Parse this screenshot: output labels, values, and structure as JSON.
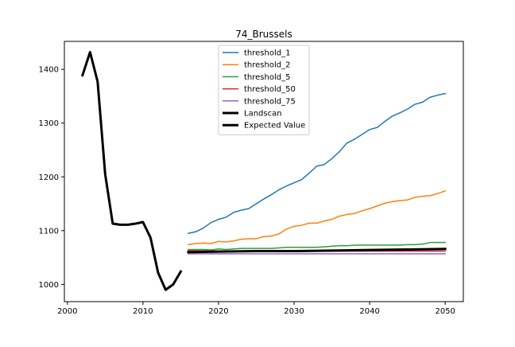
{
  "chart_data": {
    "type": "line",
    "title": "74_Brussels",
    "xlabel": "",
    "ylabel": "",
    "xlim": [
      1999.6,
      2052.4
    ],
    "ylim": [
      968,
      1452
    ],
    "xticks": [
      2000,
      2010,
      2020,
      2030,
      2040,
      2050
    ],
    "yticks": [
      1000,
      1100,
      1200,
      1300,
      1400
    ],
    "grid": false,
    "legend_position": "top-center",
    "series": [
      {
        "name": "threshold_1",
        "color": "#1f77b4",
        "width": 1.5,
        "x": [
          2016,
          2017,
          2018,
          2019,
          2020,
          2021,
          2022,
          2023,
          2024,
          2025,
          2026,
          2027,
          2028,
          2029,
          2030,
          2031,
          2032,
          2033,
          2034,
          2035,
          2036,
          2037,
          2038,
          2039,
          2040,
          2041,
          2042,
          2043,
          2044,
          2045,
          2046,
          2047,
          2048,
          2049,
          2050
        ],
        "values": [
          1095,
          1098,
          1105,
          1115,
          1121,
          1125,
          1134,
          1138,
          1141,
          1150,
          1159,
          1167,
          1176,
          1183,
          1189,
          1195,
          1207,
          1220,
          1223,
          1234,
          1247,
          1263,
          1270,
          1279,
          1288,
          1292,
          1303,
          1313,
          1319,
          1326,
          1335,
          1339,
          1348,
          1352,
          1355
        ]
      },
      {
        "name": "threshold_2",
        "color": "#ff7f0e",
        "width": 1.5,
        "x": [
          2016,
          2017,
          2018,
          2019,
          2020,
          2021,
          2022,
          2023,
          2024,
          2025,
          2026,
          2027,
          2028,
          2029,
          2030,
          2031,
          2032,
          2033,
          2034,
          2035,
          2036,
          2037,
          2038,
          2039,
          2040,
          2041,
          2042,
          2043,
          2044,
          2045,
          2046,
          2047,
          2048,
          2049,
          2050
        ],
        "values": [
          1074,
          1076,
          1077,
          1076,
          1080,
          1079,
          1081,
          1084,
          1085,
          1085,
          1089,
          1090,
          1094,
          1103,
          1108,
          1110,
          1114,
          1114,
          1118,
          1121,
          1127,
          1130,
          1132,
          1137,
          1141,
          1146,
          1151,
          1154,
          1156,
          1157,
          1162,
          1164,
          1165,
          1169,
          1174
        ]
      },
      {
        "name": "threshold_5",
        "color": "#2ca02c",
        "width": 1.5,
        "x": [
          2016,
          2017,
          2018,
          2019,
          2020,
          2021,
          2022,
          2023,
          2024,
          2025,
          2026,
          2027,
          2028,
          2029,
          2030,
          2031,
          2032,
          2033,
          2034,
          2035,
          2036,
          2037,
          2038,
          2039,
          2040,
          2041,
          2042,
          2043,
          2044,
          2045,
          2046,
          2047,
          2048,
          2049,
          2050
        ],
        "values": [
          1065,
          1065,
          1065,
          1064,
          1066,
          1065,
          1066,
          1067,
          1067,
          1067,
          1067,
          1067,
          1068,
          1069,
          1069,
          1069,
          1069,
          1069,
          1070,
          1071,
          1072,
          1072,
          1073,
          1073,
          1073,
          1073,
          1073,
          1073,
          1073,
          1074,
          1074,
          1075,
          1078,
          1078,
          1078
        ]
      },
      {
        "name": "threshold_50",
        "color": "#d62728",
        "width": 1.5,
        "x": [
          2016,
          2020,
          2025,
          2030,
          2035,
          2040,
          2045,
          2050
        ],
        "values": [
          1063,
          1062,
          1062,
          1062,
          1062,
          1062,
          1062,
          1062
        ]
      },
      {
        "name": "threshold_75",
        "color": "#9467bd",
        "width": 1.5,
        "x": [
          2016,
          2020,
          2025,
          2030,
          2035,
          2040,
          2045,
          2050
        ],
        "values": [
          1057,
          1057,
          1057,
          1057,
          1057,
          1057,
          1057,
          1057
        ]
      },
      {
        "name": "Landscan",
        "color": "#000000",
        "width": 3,
        "x": [
          2002,
          2003,
          2004,
          2005,
          2006,
          2007,
          2008,
          2009,
          2010,
          2011,
          2012,
          2013,
          2014,
          2015
        ],
        "values": [
          1389,
          1432,
          1377,
          1205,
          1113,
          1111,
          1111,
          1113,
          1116,
          1087,
          1022,
          990,
          1000,
          1024
        ]
      },
      {
        "name": "Expected Value",
        "color": "#000000",
        "width": 3,
        "x": [
          2016,
          2020,
          2025,
          2030,
          2035,
          2040,
          2045,
          2050
        ],
        "values": [
          1060,
          1061,
          1062,
          1062,
          1063,
          1064,
          1065,
          1066
        ]
      }
    ]
  }
}
